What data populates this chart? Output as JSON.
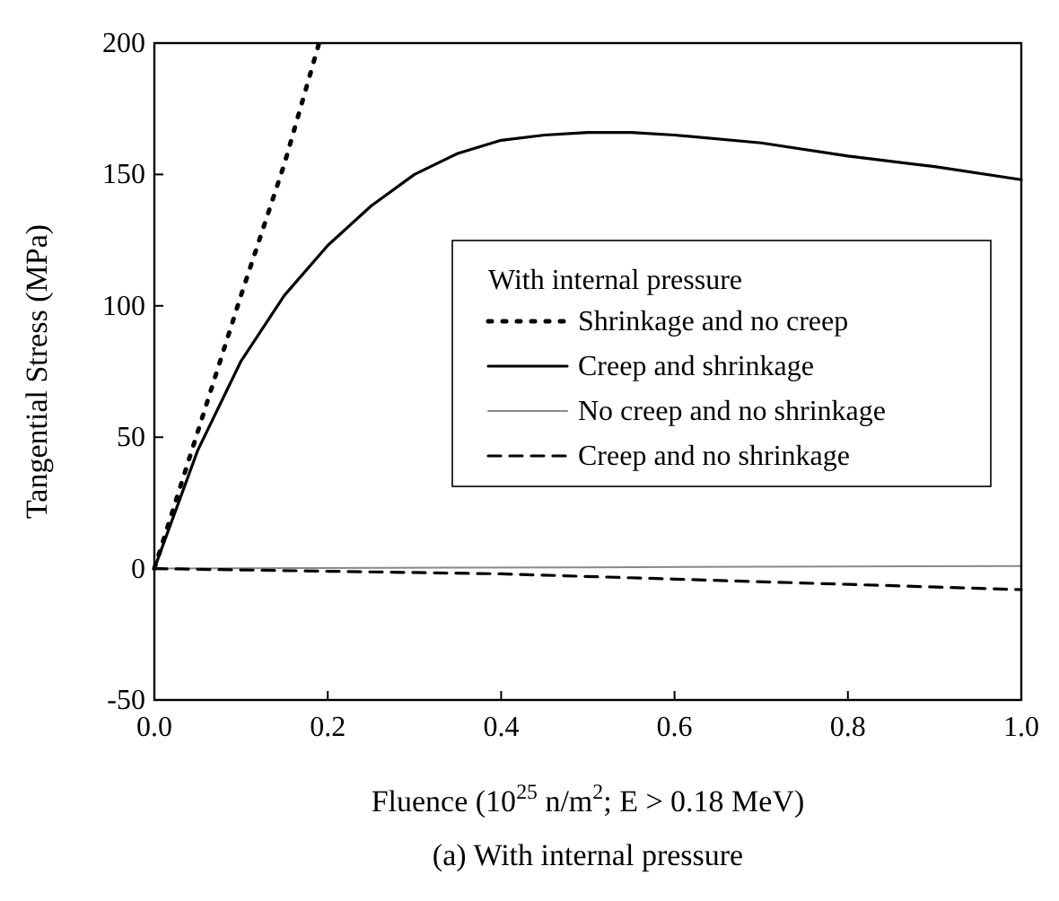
{
  "chart_data": {
    "type": "line",
    "xlabel": "Fluence (10$^{25}$ n/m$^{2}$; E > 0.18 MeV)",
    "ylabel": "Tangential Stress (MPa)",
    "legend_title": "With internal pressure",
    "annotations": [
      "(a) With internal pressure"
    ],
    "xlim": [
      0,
      1
    ],
    "ylim": [
      -50,
      200
    ],
    "xticks": [
      {
        "value": 0,
        "label": "0.0"
      },
      {
        "value": 0.2,
        "label": "0.2"
      },
      {
        "value": 0.4,
        "label": "0.4"
      },
      {
        "value": 0.6,
        "label": "0.6"
      },
      {
        "value": 0.8,
        "label": "0.8"
      },
      {
        "value": 1,
        "label": "1.0"
      }
    ],
    "yticks": [
      -50,
      0,
      50,
      100,
      150,
      200
    ],
    "grid": false,
    "legend": "right",
    "marker": "none",
    "series": [
      {
        "name": "Shrinkage and no creep",
        "color": "#000000",
        "line_style": "dotted",
        "x": [
          0,
          0.05,
          0.1,
          0.15,
          0.19
        ],
        "values": [
          0,
          52,
          104,
          154,
          200
        ]
      },
      {
        "name": "Creep and shrinkage",
        "color": "#000000",
        "line_style": "solid",
        "x": [
          0,
          0.05,
          0.1,
          0.15,
          0.2,
          0.25,
          0.3,
          0.35,
          0.4,
          0.45,
          0.5,
          0.55,
          0.6,
          0.7,
          0.8,
          0.9,
          1.0
        ],
        "values": [
          0,
          45,
          79,
          104,
          123,
          138,
          150,
          158,
          163,
          165,
          166,
          166,
          165,
          162,
          157,
          153,
          148
        ]
      },
      {
        "name": "No creep and no shrinkage",
        "color": "#888888",
        "line_style": "solid",
        "x": [
          0,
          0.5,
          1.0
        ],
        "values": [
          0,
          0.5,
          1
        ]
      },
      {
        "name": "Creep and no shrinkage",
        "color": "#000000",
        "line_style": "dashed",
        "x": [
          0,
          0.2,
          0.4,
          0.6,
          0.8,
          1.0
        ],
        "values": [
          0,
          -1,
          -2,
          -4,
          -6,
          -8
        ]
      }
    ]
  }
}
